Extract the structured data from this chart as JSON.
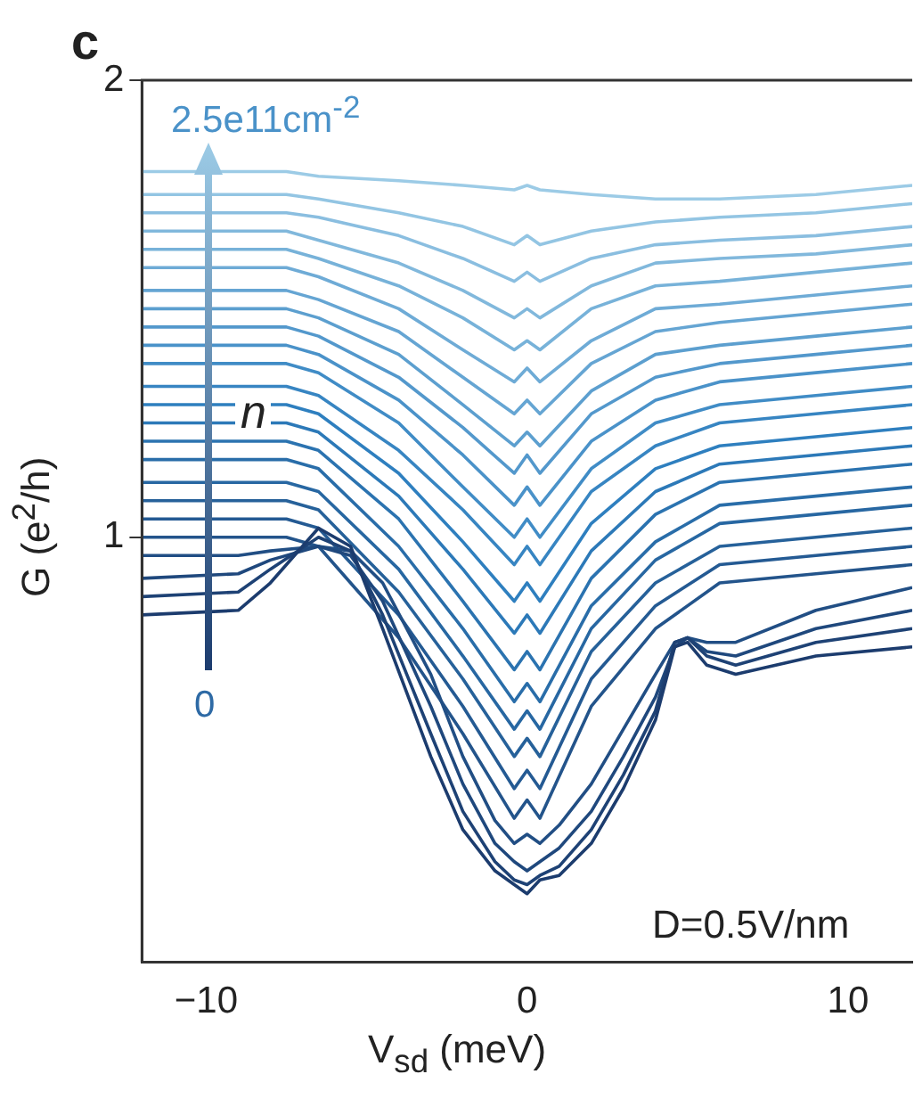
{
  "chart_data": {
    "type": "line",
    "xlabel": "V$_{sd}$ (meV)",
    "ylabel": "G (e$^{2}$/h)",
    "xlim": [
      -12,
      12
    ],
    "ylim": [
      0.07,
      2
    ],
    "xticks": [
      {
        "value": -10,
        "label": "−10"
      },
      0,
      10
    ],
    "yticks": [
      1,
      2
    ],
    "grid": false,
    "legend": false,
    "marker": "none",
    "line_style": "solid",
    "annotations": [
      "c",
      "2.5e11cm$^{-2}$",
      "n",
      "0",
      "D=0.5V/nm"
    ],
    "x": [
      -12,
      -7.5,
      -6.5,
      -4,
      -2,
      -0.4,
      0,
      0.4,
      2,
      4,
      6,
      9,
      12
    ],
    "series": [
      {
        "color": "#1c3c6e",
        "x": [
          -12,
          -9,
          -8,
          -6.5,
          -5.5,
          -4.5,
          -3,
          -2,
          -1,
          -0.4,
          0,
          0.4,
          1,
          2,
          3,
          4,
          4.6,
          5,
          5.6,
          6.5,
          9,
          12
        ],
        "values": [
          0.83,
          0.84,
          0.9,
          1.02,
          0.98,
          0.8,
          0.52,
          0.36,
          0.27,
          0.24,
          0.22,
          0.25,
          0.26,
          0.33,
          0.45,
          0.6,
          0.76,
          0.77,
          0.72,
          0.7,
          0.74,
          0.76
        ]
      },
      {
        "color": "#1e4275",
        "x": [
          -12,
          -9,
          -8,
          -6.5,
          -5.5,
          -4.5,
          -3,
          -2,
          -1,
          -0.4,
          0,
          0.4,
          1,
          2,
          3,
          4,
          4.6,
          5,
          5.6,
          6.5,
          9,
          12
        ],
        "values": [
          0.87,
          0.88,
          0.93,
          1.0,
          0.97,
          0.83,
          0.57,
          0.4,
          0.29,
          0.25,
          0.24,
          0.26,
          0.28,
          0.36,
          0.48,
          0.62,
          0.77,
          0.78,
          0.74,
          0.72,
          0.77,
          0.8
        ]
      },
      {
        "color": "#1f487d",
        "x": [
          -12,
          -9,
          -8,
          -6.5,
          -5.5,
          -4.5,
          -3,
          -2,
          -1,
          -0.4,
          0,
          0.4,
          1,
          2,
          3,
          4,
          4.6,
          5,
          5.6,
          6.5,
          9,
          12
        ],
        "values": [
          0.91,
          0.92,
          0.95,
          0.98,
          0.96,
          0.86,
          0.63,
          0.46,
          0.33,
          0.29,
          0.27,
          0.29,
          0.32,
          0.4,
          0.52,
          0.65,
          0.76,
          0.78,
          0.75,
          0.74,
          0.8,
          0.84
        ]
      },
      {
        "color": "#214e84",
        "x": [
          -12,
          -9,
          -8,
          -6.5,
          -5.5,
          -4.5,
          -3,
          -2,
          -1,
          -0.4,
          0,
          0.4,
          1,
          2,
          3,
          4,
          4.6,
          5,
          5.6,
          6.5,
          9,
          12
        ],
        "values": [
          0.96,
          0.96,
          0.97,
          0.98,
          0.97,
          0.9,
          0.7,
          0.52,
          0.38,
          0.33,
          0.35,
          0.33,
          0.37,
          0.46,
          0.58,
          0.7,
          0.77,
          0.78,
          0.77,
          0.77,
          0.84,
          0.89
        ]
      },
      {
        "color": "#23548b",
        "values": [
          1.0,
          1.0,
          0.98,
          0.78,
          0.57,
          0.385,
          0.425,
          0.385,
          0.63,
          0.8,
          0.9,
          0.92,
          0.94
        ]
      },
      {
        "color": "#245a93",
        "values": [
          1.04,
          1.04,
          1.02,
          0.83,
          0.63,
          0.45,
          0.49,
          0.45,
          0.69,
          0.85,
          0.94,
          0.96,
          0.98
        ]
      },
      {
        "color": "#26619a",
        "values": [
          1.08,
          1.08,
          1.06,
          0.88,
          0.69,
          0.52,
          0.56,
          0.52,
          0.75,
          0.9,
          0.98,
          1.0,
          1.02
        ]
      },
      {
        "color": "#2767a2",
        "values": [
          1.12,
          1.12,
          1.1,
          0.93,
          0.74,
          0.58,
          0.62,
          0.58,
          0.8,
          0.95,
          1.03,
          1.05,
          1.07
        ]
      },
      {
        "color": "#296da9",
        "values": [
          1.17,
          1.17,
          1.15,
          0.98,
          0.8,
          0.64,
          0.68,
          0.64,
          0.85,
          0.99,
          1.07,
          1.09,
          1.11
        ]
      },
      {
        "color": "#2b73b0",
        "values": [
          1.21,
          1.21,
          1.19,
          1.04,
          0.86,
          0.71,
          0.75,
          0.71,
          0.91,
          1.05,
          1.12,
          1.14,
          1.16
        ]
      },
      {
        "color": "#2c79b8",
        "values": [
          1.25,
          1.25,
          1.23,
          1.09,
          0.93,
          0.79,
          0.83,
          0.79,
          0.97,
          1.1,
          1.16,
          1.18,
          1.2
        ]
      },
      {
        "color": "#2e7fbf",
        "values": [
          1.29,
          1.29,
          1.27,
          1.14,
          0.99,
          0.86,
          0.9,
          0.86,
          1.03,
          1.15,
          1.2,
          1.22,
          1.24
        ]
      },
      {
        "color": "#3785c2",
        "values": [
          1.33,
          1.33,
          1.31,
          1.19,
          1.06,
          0.94,
          0.98,
          0.94,
          1.1,
          1.2,
          1.25,
          1.27,
          1.29
        ]
      },
      {
        "color": "#408cc6",
        "values": [
          1.38,
          1.38,
          1.36,
          1.25,
          1.11,
          1.0,
          1.04,
          1.0,
          1.15,
          1.25,
          1.29,
          1.31,
          1.33
        ]
      },
      {
        "color": "#4a92c9",
        "values": [
          1.42,
          1.42,
          1.4,
          1.3,
          1.18,
          1.07,
          1.11,
          1.07,
          1.21,
          1.3,
          1.34,
          1.36,
          1.38
        ]
      },
      {
        "color": "#5398cc",
        "values": [
          1.46,
          1.46,
          1.44,
          1.35,
          1.24,
          1.14,
          1.18,
          1.14,
          1.27,
          1.35,
          1.38,
          1.4,
          1.42
        ]
      },
      {
        "color": "#5c9fcf",
        "values": [
          1.5,
          1.5,
          1.48,
          1.4,
          1.29,
          1.2,
          1.23,
          1.2,
          1.32,
          1.4,
          1.42,
          1.44,
          1.46
        ]
      },
      {
        "color": "#65a5d3",
        "values": [
          1.54,
          1.54,
          1.52,
          1.45,
          1.35,
          1.27,
          1.3,
          1.27,
          1.38,
          1.45,
          1.47,
          1.49,
          1.51
        ]
      },
      {
        "color": "#6eabd6",
        "values": [
          1.59,
          1.59,
          1.57,
          1.5,
          1.41,
          1.34,
          1.37,
          1.34,
          1.43,
          1.5,
          1.51,
          1.53,
          1.55
        ]
      },
      {
        "color": "#77b2d9",
        "values": [
          1.63,
          1.63,
          1.61,
          1.55,
          1.48,
          1.41,
          1.43,
          1.41,
          1.5,
          1.55,
          1.56,
          1.58,
          1.6
        ]
      },
      {
        "color": "#81b8dc",
        "values": [
          1.67,
          1.67,
          1.65,
          1.6,
          1.54,
          1.48,
          1.5,
          1.48,
          1.55,
          1.6,
          1.61,
          1.62,
          1.64
        ]
      },
      {
        "color": "#8abee0",
        "values": [
          1.71,
          1.71,
          1.7,
          1.66,
          1.61,
          1.56,
          1.58,
          1.56,
          1.61,
          1.64,
          1.65,
          1.66,
          1.68
        ]
      },
      {
        "color": "#93c5e3",
        "values": [
          1.75,
          1.75,
          1.74,
          1.71,
          1.68,
          1.64,
          1.66,
          1.64,
          1.67,
          1.69,
          1.7,
          1.71,
          1.73
        ]
      },
      {
        "color": "#9ccbe6",
        "values": [
          1.8,
          1.8,
          1.79,
          1.78,
          1.77,
          1.76,
          1.77,
          1.76,
          1.75,
          1.74,
          1.74,
          1.75,
          1.77
        ]
      }
    ]
  }
}
